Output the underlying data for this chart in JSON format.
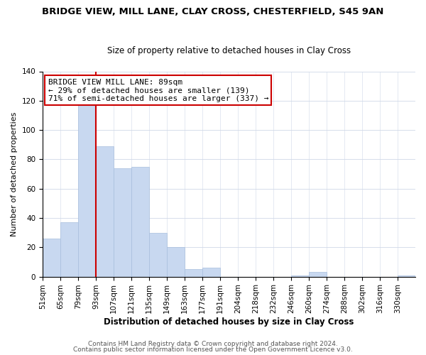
{
  "title": "BRIDGE VIEW, MILL LANE, CLAY CROSS, CHESTERFIELD, S45 9AN",
  "subtitle": "Size of property relative to detached houses in Clay Cross",
  "xlabel": "Distribution of detached houses by size in Clay Cross",
  "ylabel": "Number of detached properties",
  "bar_color": "#c8d8f0",
  "bar_edge_color": "#a8bedd",
  "bin_labels": [
    "51sqm",
    "65sqm",
    "79sqm",
    "93sqm",
    "107sqm",
    "121sqm",
    "135sqm",
    "149sqm",
    "163sqm",
    "177sqm",
    "191sqm",
    "204sqm",
    "218sqm",
    "232sqm",
    "246sqm",
    "260sqm",
    "274sqm",
    "288sqm",
    "302sqm",
    "316sqm",
    "330sqm"
  ],
  "bar_heights": [
    26,
    37,
    118,
    89,
    74,
    75,
    30,
    20,
    5,
    6,
    0,
    0,
    0,
    0,
    1,
    3,
    0,
    0,
    0,
    0,
    1
  ],
  "annotation_line1": "BRIDGE VIEW MILL LANE: 89sqm",
  "annotation_line2": "← 29% of detached houses are smaller (139)",
  "annotation_line3": "71% of semi-detached houses are larger (337) →",
  "ylim": [
    0,
    140
  ],
  "yticks": [
    0,
    20,
    40,
    60,
    80,
    100,
    120,
    140
  ],
  "line_color": "#cc0000",
  "footer1": "Contains HM Land Registry data © Crown copyright and database right 2024.",
  "footer2": "Contains public sector information licensed under the Open Government Licence v3.0.",
  "title_fontsize": 9.5,
  "subtitle_fontsize": 8.5,
  "xlabel_fontsize": 8.5,
  "ylabel_fontsize": 8,
  "tick_fontsize": 7.5,
  "annotation_fontsize": 8,
  "footer_fontsize": 6.5
}
